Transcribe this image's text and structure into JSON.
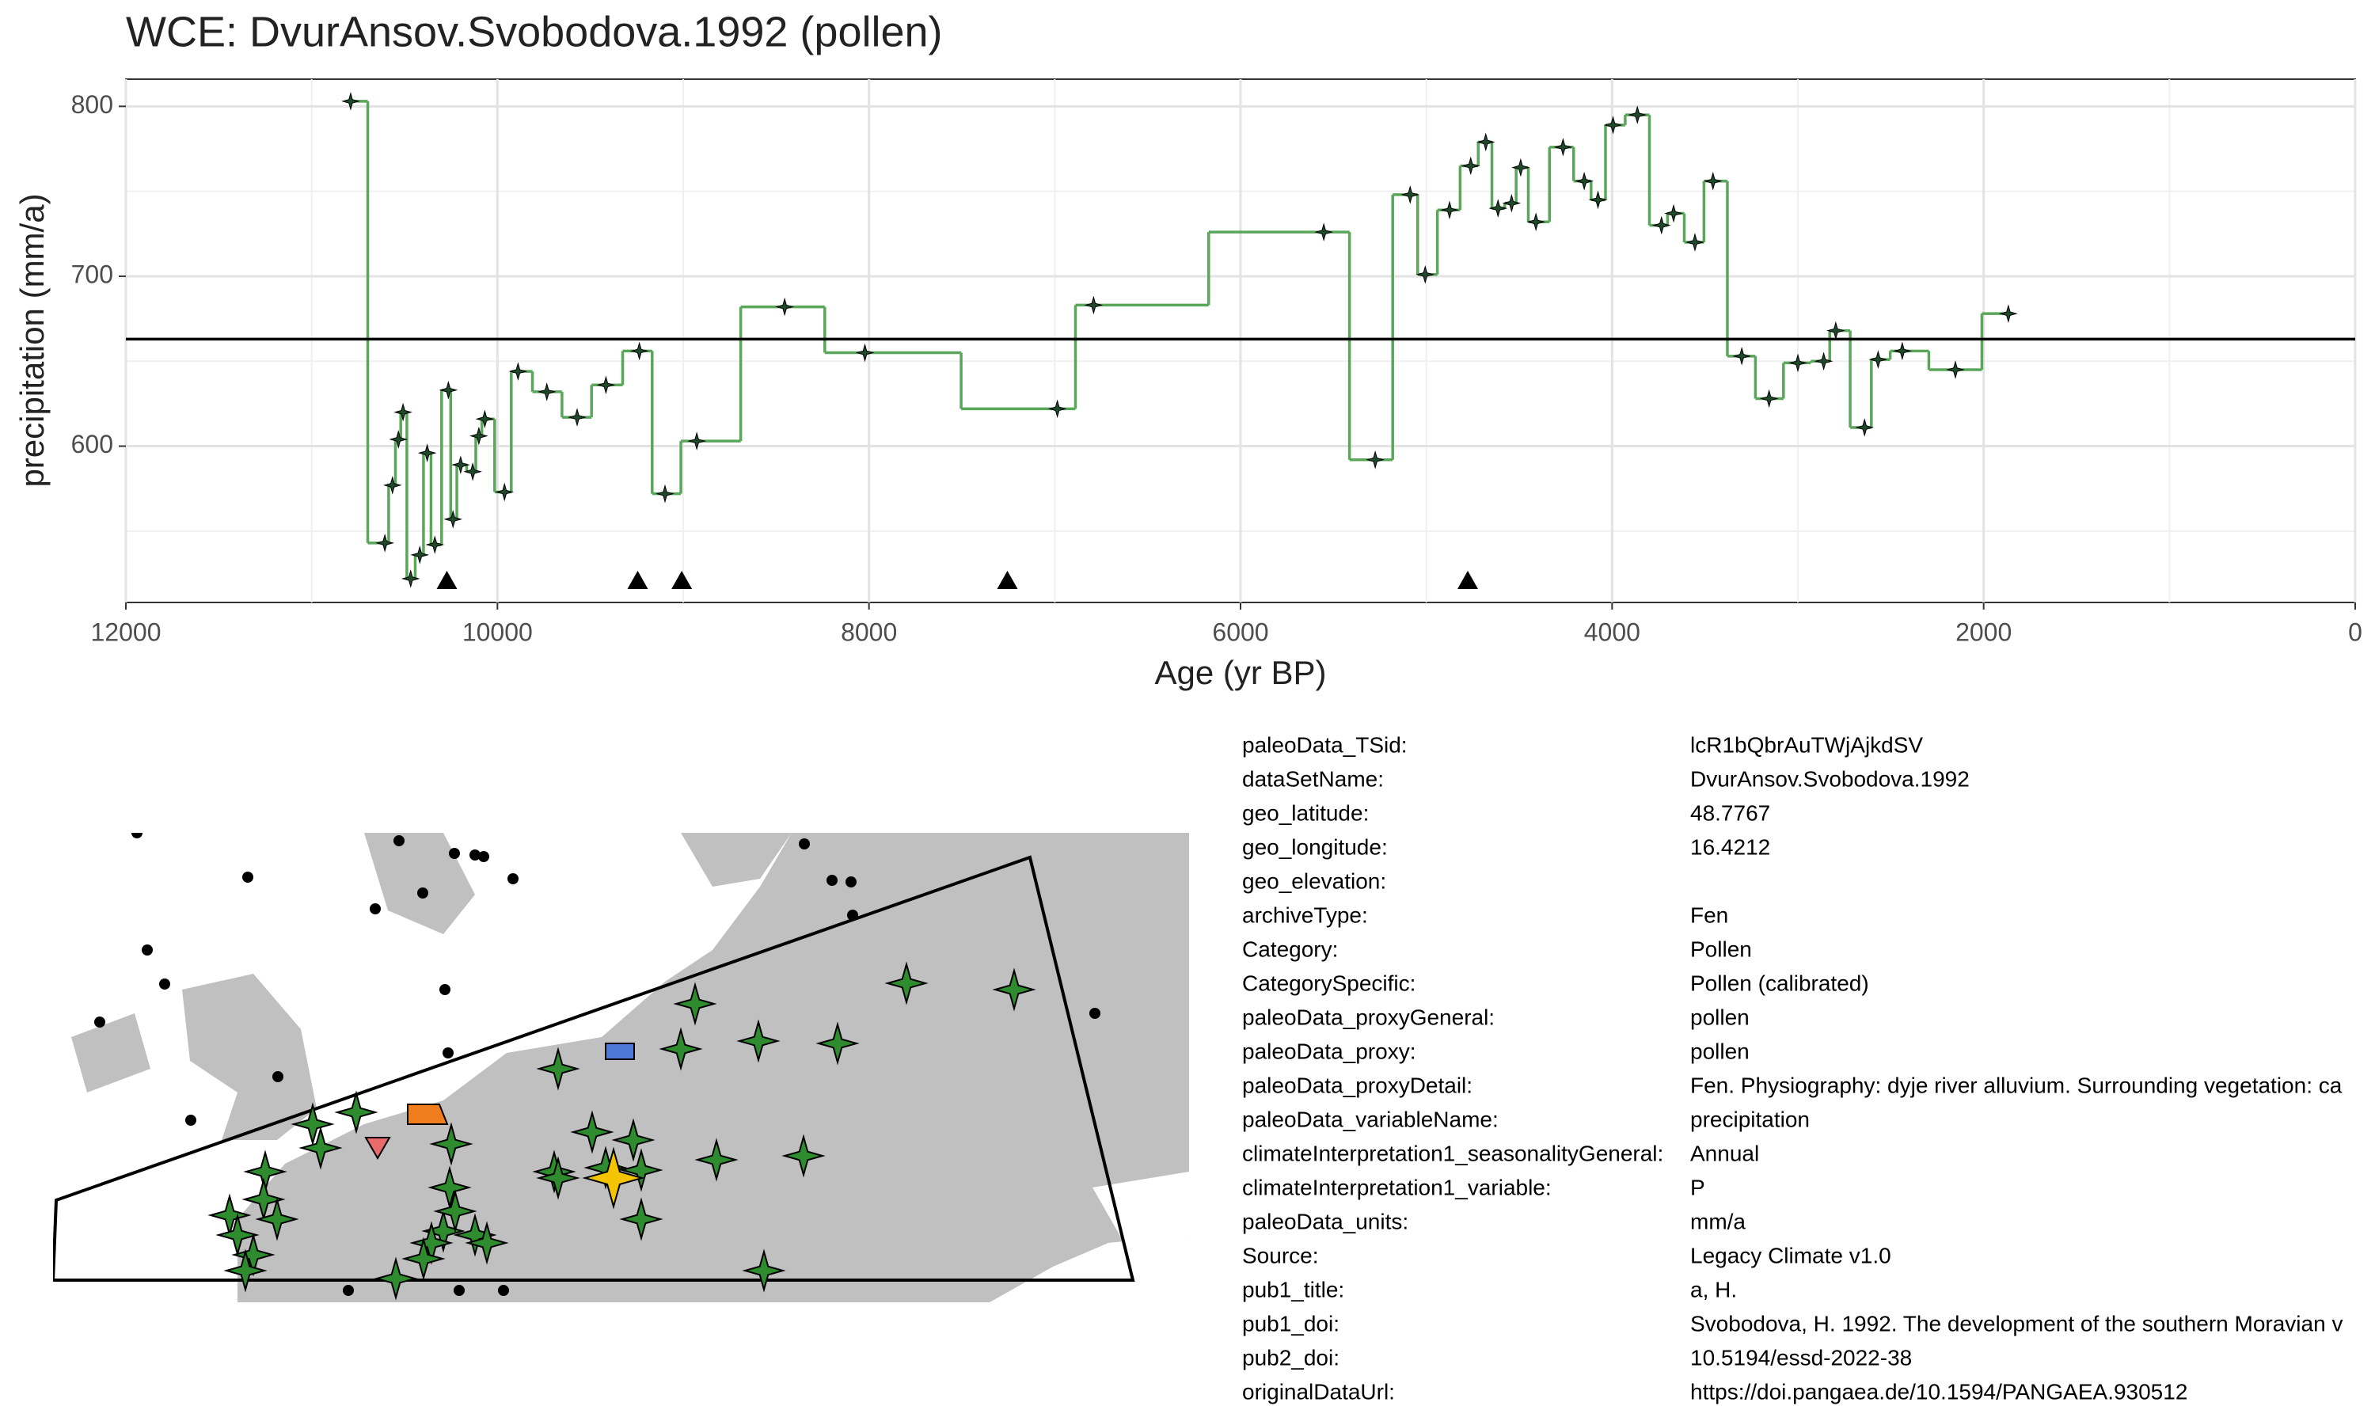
{
  "chart_data": {
    "type": "step",
    "title": "WCE: DvurAnsov.Svobodova.1992 (pollen)",
    "x_label": "Age (yr BP)",
    "y_label": "precipitation (mm/a)",
    "x": [
      10790,
      10606,
      10565,
      10533,
      10508,
      10467,
      10418,
      10378,
      10337,
      10264,
      10239,
      10198,
      10133,
      10100,
      10068,
      9962,
      9889,
      9734,
      9571,
      9416,
      9236,
      9098,
      8927,
      8454,
      8022,
      6986,
      6791,
      5552,
      5275,
      5087,
      5006,
      4875,
      4761,
      4680,
      4614,
      4541,
      4492,
      4410,
      4264,
      4150,
      4076,
      3995,
      3864,
      3734,
      3669,
      3554,
      3457,
      3302,
      3155,
      3000,
      2861,
      2796,
      2641,
      2568,
      2438,
      2152,
      1867
    ],
    "values": [
      803,
      543,
      577,
      604,
      620,
      522,
      536,
      596,
      542,
      633,
      557,
      589,
      585,
      606,
      616,
      573,
      644,
      632,
      617,
      636,
      656,
      572,
      603,
      682,
      655,
      622,
      683,
      726,
      592,
      748,
      701,
      739,
      765,
      779,
      740,
      743,
      764,
      732,
      776,
      756,
      745,
      789,
      795,
      730,
      737,
      720,
      756,
      653,
      628,
      649,
      650,
      668,
      611,
      651,
      656,
      645,
      678
    ],
    "color": "#5aa65a",
    "point_color": "#1f4a2a",
    "reference_line": 663,
    "markers": [
      10272,
      9245,
      9008,
      7255,
      4777
    ],
    "xlim": [
      12000,
      0
    ],
    "xticks": [
      12000,
      10000,
      8000,
      6000,
      4000,
      2000,
      0
    ],
    "ylim": [
      508,
      816
    ],
    "yticks": [
      600,
      700,
      800
    ],
    "grid": true
  },
  "metadata": {
    "rows": [
      {
        "key": "paleoData_TSid:",
        "value": "lcR1bQbrAuTWjAjkdSV"
      },
      {
        "key": "dataSetName:",
        "value": "DvurAnsov.Svobodova.1992"
      },
      {
        "key": "geo_latitude:",
        "value": "48.7767"
      },
      {
        "key": "geo_longitude:",
        "value": "16.4212"
      },
      {
        "key": "geo_elevation:"
      },
      {
        "key": "archiveType:",
        "value": "Fen"
      },
      {
        "key": "Category:",
        "value": "Pollen"
      },
      {
        "key": "CategorySpecific:",
        "value": "Pollen (calibrated)"
      },
      {
        "key": "paleoData_proxyGeneral:",
        "value": "pollen"
      },
      {
        "key": "paleoData_proxy:",
        "value": "pollen"
      },
      {
        "key": "paleoData_proxyDetail:",
        "value": "Fen. Physiography: dyje river alluvium. Surrounding vegetation: ca"
      },
      {
        "key": "paleoData_variableName:",
        "value": "precipitation"
      },
      {
        "key": "climateInterpretation1_seasonalityGeneral:",
        "value": "Annual"
      },
      {
        "key": "climateInterpretation1_variable:",
        "value": "P"
      },
      {
        "key": "paleoData_units:",
        "value": "mm/a"
      },
      {
        "key": "Source:",
        "value": "Legacy Climate v1.0"
      },
      {
        "key": "pub1_title:",
        "value": "a, H."
      },
      {
        "key": "pub1_doi:",
        "value": "Svobodova, H. 1992. The development of the southern Moravian v"
      },
      {
        "key": "pub2_doi:",
        "value": "10.5194/essd-2022-38"
      },
      {
        "key": "originalDataUrl:",
        "value": "https://doi.pangaea.de/10.1594/PANGAEA.930512"
      }
    ]
  }
}
